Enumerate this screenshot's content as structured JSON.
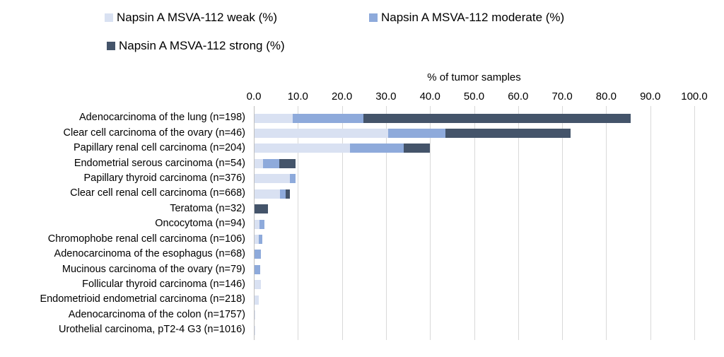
{
  "legend": [
    {
      "label": "Napsin A MSVA-112 weak (%)",
      "color": "#d9e1f2"
    },
    {
      "label": "Napsin A MSVA-112 moderate (%)",
      "color": "#8eaadb"
    },
    {
      "label": "Napsin A MSVA-112 strong (%)",
      "color": "#44546a"
    }
  ],
  "chart_data": {
    "type": "bar",
    "orientation": "horizontal",
    "stacked": true,
    "xlabel": "% of tumor samples",
    "xlim": [
      0,
      100
    ],
    "xticks": [
      "0.0",
      "10.0",
      "20.0",
      "30.0",
      "40.0",
      "50.0",
      "60.0",
      "70.0",
      "80.0",
      "90.0",
      "100.0"
    ],
    "grid": true,
    "gridline_color": "#d9d9d9",
    "legend_position": "top",
    "categories": [
      "Adenocarcinoma of the lung (n=198)",
      "Clear cell carcinoma of the ovary (n=46)",
      "Papillary renal cell carcinoma (n=204)",
      "Endometrial serous carcinoma (n=54)",
      "Papillary thyroid carcinoma (n=376)",
      "Clear cell renal cell carcinoma (n=668)",
      "Teratoma (n=32)",
      "Oncocytoma (n=94)",
      "Chromophobe renal cell carcinoma  (n=106)",
      "Adenocarcinoma of the esophagus (n=68)",
      "Mucinous carcinoma of the ovary (n=79)",
      "Follicular thyroid carcinoma (n=146)",
      "Endometrioid endometrial carcinoma (n=218)",
      "Adenocarcinoma of the colon (n=1757)",
      "Urothelial carcinoma, pT2-4 G3 (n=1016)"
    ],
    "series": [
      {
        "name": "Napsin A MSVA-112 weak (%)",
        "color": "#d9e1f2",
        "values": [
          8.6,
          30.4,
          21.6,
          1.9,
          8.0,
          5.8,
          0,
          1.1,
          0.9,
          0,
          0,
          1.4,
          0.9,
          0.2,
          0.2
        ]
      },
      {
        "name": "Napsin A MSVA-112 moderate (%)",
        "color": "#8eaadb",
        "values": [
          16.2,
          13.0,
          12.3,
          3.7,
          1.3,
          1.3,
          0,
          1.1,
          0.9,
          1.5,
          1.3,
          0,
          0,
          0,
          0
        ]
      },
      {
        "name": "Napsin A MSVA-112 strong (%)",
        "color": "#44546a",
        "values": [
          60.6,
          28.3,
          5.9,
          3.7,
          0,
          0.9,
          3.1,
          0,
          0,
          0,
          0,
          0,
          0,
          0,
          0
        ]
      }
    ]
  }
}
